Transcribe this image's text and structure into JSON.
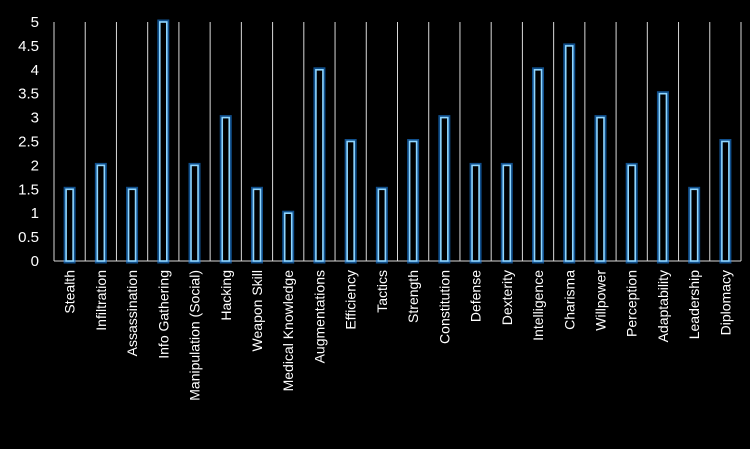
{
  "chart_data": {
    "type": "bar",
    "title": "",
    "xlabel": "",
    "ylabel": "",
    "ylim": [
      0,
      5
    ],
    "y_ticks": [
      "0",
      "0.5",
      "1",
      "1.5",
      "2",
      "2.5",
      "3",
      "3.5",
      "4",
      "4.5",
      "5"
    ],
    "grid": "vertical",
    "legend": "none",
    "categories": [
      "Stealth",
      "Infiltration",
      "Assassination",
      "Info Gathering",
      "Manipulation (Social)",
      "Hacking",
      "Weapon Skill",
      "Medical Knowledge",
      "Augmentations",
      "Efficiency",
      "Tactics",
      "Strength",
      "Constitution",
      "Defense",
      "Dexterity",
      "Intelligence",
      "Charisma",
      "Willpower",
      "Perception",
      "Adaptability",
      "Leadership",
      "Diplomacy"
    ],
    "values": [
      1.5,
      2,
      1.5,
      5,
      2,
      3,
      1.5,
      1,
      4,
      2.5,
      1.5,
      2.5,
      3,
      2,
      2,
      4,
      4.5,
      3,
      2,
      3.5,
      1.5,
      2.5
    ],
    "colors": {
      "background": "#000000",
      "bar_outline": "#8fd6ff",
      "bar_glow": "#1e90ff",
      "grid": "#d9d9d9",
      "text": "#ffffff"
    }
  }
}
